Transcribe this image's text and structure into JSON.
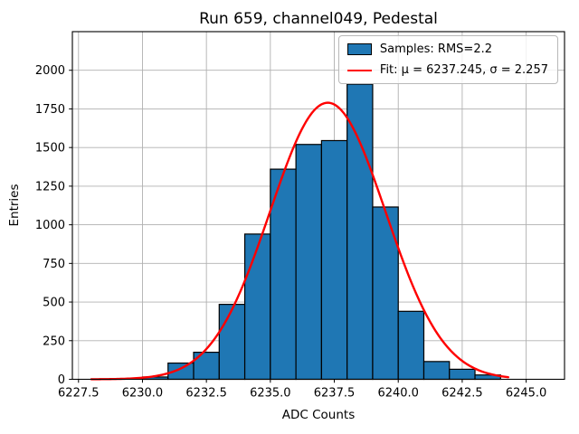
{
  "figure": {
    "title": "Run 659, channel049, Pedestal",
    "xlabel": "ADC Counts",
    "ylabel": "Entries"
  },
  "chart_data": {
    "type": "bar",
    "subtype": "histogram-with-gaussian-fit",
    "title": "Run 659, channel049, Pedestal",
    "xlabel": "ADC Counts",
    "ylabel": "Entries",
    "xlim": [
      6227.26,
      6246.5
    ],
    "ylim": [
      0,
      2250
    ],
    "xticks": [
      6227.5,
      6230.0,
      6232.5,
      6235.0,
      6237.5,
      6240.0,
      6242.5,
      6245.0
    ],
    "yticks": [
      0,
      250,
      500,
      750,
      1000,
      1250,
      1500,
      1750,
      2000
    ],
    "grid": true,
    "grid_color": "#b0b0b0",
    "legend_position": "upper right",
    "bins": {
      "start": 6230,
      "width": 1,
      "edges": [
        6230,
        6231,
        6232,
        6233,
        6234,
        6235,
        6236,
        6237,
        6238,
        6239,
        6240,
        6241,
        6242,
        6243,
        6244
      ],
      "counts": [
        15,
        105,
        175,
        485,
        940,
        1360,
        1520,
        1545,
        1910,
        1115,
        440,
        115,
        65,
        28
      ]
    },
    "series": [
      {
        "name": "Samples: RMS=2.2",
        "kind": "histogram",
        "color": "#1f77b4",
        "edge_color": "#000000"
      },
      {
        "name": "Fit: μ = 6237.245, σ = 2.257",
        "kind": "gaussian",
        "color": "#ff0000",
        "mu": 6237.245,
        "sigma": 2.257,
        "amplitude": 1790,
        "x_range": [
          6228.0,
          6244.3
        ]
      }
    ]
  }
}
